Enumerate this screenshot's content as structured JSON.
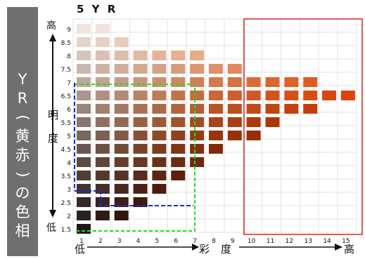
{
  "side_panel": {
    "chars": [
      "Y",
      "R",
      "(",
      "黄",
      "赤",
      ")",
      "の",
      "色",
      "相"
    ]
  },
  "labels": {
    "high_v": "高",
    "low_v": "低",
    "brightness_1": "明",
    "brightness_2": "度",
    "low_h": "低",
    "high_h": "高",
    "chroma_1": "彩",
    "chroma_2": "度"
  },
  "colors": {
    "grid": "#e2e2e2",
    "red_box": "#e02020",
    "green_box": "#22dd22",
    "blue_box": "#1a2ad0",
    "axis": "#111111"
  },
  "chart_data": {
    "type": "heatmap",
    "title": "5 Y R",
    "x_ticks": [
      "1",
      "2",
      "3",
      "4",
      "5",
      "6",
      "7",
      "8",
      "9",
      "10",
      "11",
      "12",
      "13",
      "14",
      "15"
    ],
    "y_ticks": [
      "9",
      "8.5",
      "8",
      "7.5",
      "7",
      "6.5",
      "6",
      "5.5",
      "5",
      "4.5",
      "4",
      "3.5",
      "3",
      "2.5",
      "2",
      "1.5"
    ],
    "rows": [
      {
        "value": "9",
        "colors": [
          "#efe4df",
          "#f0e2dc"
        ]
      },
      {
        "value": "8.5",
        "colors": [
          "#e4d4cc",
          "#e6d1c8",
          "#eacbbc"
        ]
      },
      {
        "value": "8",
        "colors": [
          "#d6c4bb",
          "#d9c1b5",
          "#ddbdac",
          "#e0b9a2",
          "#e3b49a",
          "#e5b093",
          "#e7ab88"
        ]
      },
      {
        "value": "7.5",
        "colors": [
          "#c8b7ae",
          "#cbb3a7",
          "#cfae9c",
          "#d3a891",
          "#d6a286",
          "#d99c7b",
          "#dc9671",
          "#de9066",
          "#e08a5c"
        ]
      },
      {
        "value": "7",
        "colors": [
          "#bba89e",
          "#bfa396",
          "#c39c89",
          "#c8957d",
          "#cc8e70",
          "#d08763",
          "#d38058",
          "#d6794c",
          "#d97242",
          "#db6c38",
          "#dd6630",
          "#df6128",
          "#e05c22"
        ]
      },
      {
        "value": "6.5",
        "colors": [
          "#aa968c",
          "#ae9183",
          "#b38a75",
          "#b88368",
          "#bc7b5a",
          "#c0744e",
          "#c46d43",
          "#c86638",
          "#cb5f2e",
          "#ce5926",
          "#d1541f",
          "#d35019",
          "#d54c14",
          "#d74810",
          "#d9450c"
        ]
      },
      {
        "value": "6",
        "colors": [
          "#9a857b",
          "#9e8071",
          "#a37963",
          "#a87155",
          "#ac6a48",
          "#b0633c",
          "#b45c32",
          "#b85528",
          "#bb4f20",
          "#be4919",
          "#c14413",
          "#c3400e",
          "#c53c0a"
        ]
      },
      {
        "value": "5.5",
        "colors": [
          "#89756b",
          "#8d7061",
          "#926953",
          "#976145",
          "#9b5a38",
          "#9f522c",
          "#a34b22",
          "#a6451a",
          "#a93f13",
          "#ac3a0d",
          "#ae3608"
        ]
      },
      {
        "value": "5",
        "colors": [
          "#79665d",
          "#7d6152",
          "#825a44",
          "#865236",
          "#8a4b2a",
          "#8e431f",
          "#913d16",
          "#94370f",
          "#973209",
          "#992d05"
        ]
      },
      {
        "value": "4.5",
        "colors": [
          "#6a5850",
          "#6e5245",
          "#724b38",
          "#76442c",
          "#7a3d21",
          "#7d3617",
          "#80300f",
          "#832b09"
        ]
      },
      {
        "value": "4",
        "colors": [
          "#5c4b44",
          "#604539",
          "#643e2d",
          "#683722",
          "#6b3018",
          "#6e2a10",
          "#71250a"
        ]
      },
      {
        "value": "3.5",
        "colors": [
          "#4e3f39",
          "#52392f",
          "#563224",
          "#592c1a",
          "#5c2612",
          "#5f200b"
        ]
      },
      {
        "value": "3",
        "colors": [
          "#42342f",
          "#452e26",
          "#48281c",
          "#4b2213",
          "#4e1c0c"
        ]
      },
      {
        "value": "2.5",
        "colors": [
          "#362a26",
          "#39241e",
          "#3c1e15",
          "#3e190d"
        ]
      },
      {
        "value": "2",
        "colors": [
          "#2b211e",
          "#2e1b16",
          "#30160f"
        ]
      },
      {
        "value": "1.5",
        "colors": [
          "#211815"
        ]
      }
    ]
  }
}
